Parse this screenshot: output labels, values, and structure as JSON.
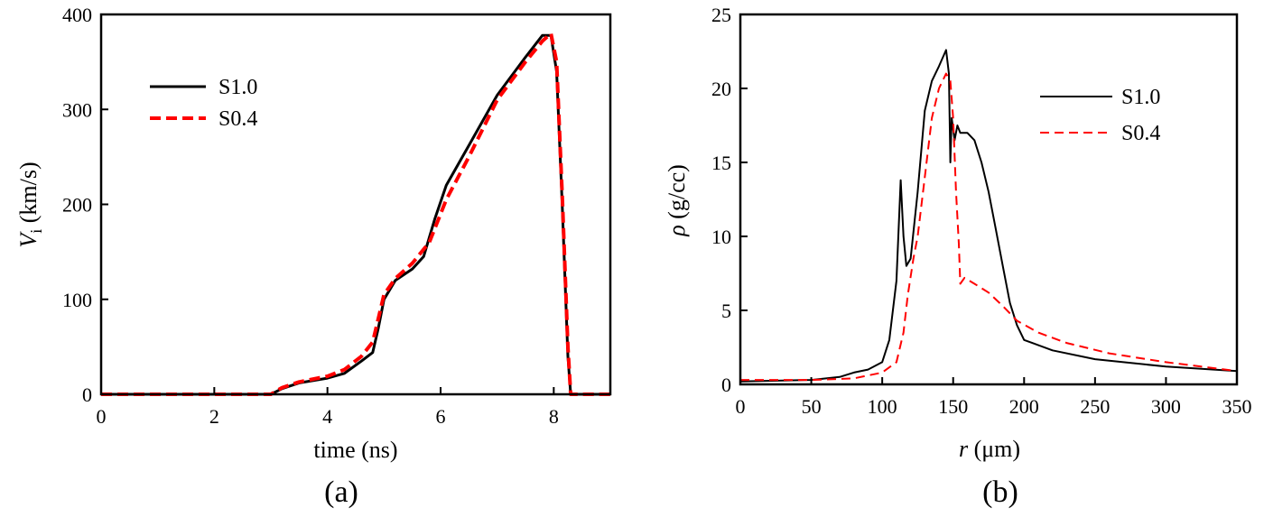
{
  "chart_data": [
    {
      "type": "line",
      "panel_label": "(a)",
      "xlabel": "time (ns)",
      "ylabel_symbol": "V",
      "ylabel_sub": "i",
      "ylabel_unit": " (km/s)",
      "xlim": [
        0,
        9
      ],
      "ylim": [
        0,
        400
      ],
      "xticks": [
        0,
        2,
        4,
        6,
        8
      ],
      "yticks": [
        0,
        100,
        200,
        300,
        400
      ],
      "legend_position": "top-left",
      "series": [
        {
          "name": "S1.0",
          "color": "#000000",
          "style": "solid",
          "points": [
            [
              0,
              0
            ],
            [
              3.0,
              0
            ],
            [
              3.2,
              6
            ],
            [
              3.5,
              12
            ],
            [
              4.0,
              17
            ],
            [
              4.3,
              22
            ],
            [
              4.6,
              35
            ],
            [
              4.8,
              44
            ],
            [
              4.9,
              70
            ],
            [
              5.0,
              100
            ],
            [
              5.2,
              120
            ],
            [
              5.5,
              132
            ],
            [
              5.7,
              145
            ],
            [
              5.9,
              185
            ],
            [
              6.1,
              220
            ],
            [
              6.5,
              262
            ],
            [
              7.0,
              315
            ],
            [
              7.5,
              355
            ],
            [
              7.8,
              378
            ],
            [
              7.95,
              378
            ],
            [
              8.05,
              340
            ],
            [
              8.15,
              200
            ],
            [
              8.25,
              40
            ],
            [
              8.3,
              0
            ],
            [
              9.0,
              0
            ]
          ]
        },
        {
          "name": "S0.4",
          "color": "#ff0000",
          "style": "dashed",
          "points": [
            [
              0,
              0
            ],
            [
              3.0,
              0
            ],
            [
              3.2,
              7
            ],
            [
              3.5,
              13
            ],
            [
              4.0,
              19
            ],
            [
              4.3,
              26
            ],
            [
              4.6,
              40
            ],
            [
              4.8,
              55
            ],
            [
              4.9,
              80
            ],
            [
              5.0,
              105
            ],
            [
              5.2,
              122
            ],
            [
              5.5,
              138
            ],
            [
              5.8,
              160
            ],
            [
              6.1,
              205
            ],
            [
              6.5,
              250
            ],
            [
              7.0,
              310
            ],
            [
              7.5,
              350
            ],
            [
              7.8,
              372
            ],
            [
              7.95,
              380
            ],
            [
              8.05,
              350
            ],
            [
              8.15,
              210
            ],
            [
              8.25,
              50
            ],
            [
              8.3,
              0
            ],
            [
              9.0,
              0
            ]
          ]
        }
      ]
    },
    {
      "type": "line",
      "panel_label": "(b)",
      "xlabel_symbol": "r",
      "xlabel_unit": " (μm)",
      "ylabel_symbol": "ρ",
      "ylabel_unit": " (g/cc)",
      "xlim": [
        0,
        350
      ],
      "ylim": [
        0,
        25
      ],
      "xticks": [
        0,
        50,
        100,
        150,
        200,
        250,
        300,
        350
      ],
      "yticks": [
        0,
        5,
        10,
        15,
        20,
        25
      ],
      "legend_position": "top-right",
      "series": [
        {
          "name": "S1.0",
          "color": "#000000",
          "style": "solid",
          "points": [
            [
              0,
              0.2
            ],
            [
              50,
              0.3
            ],
            [
              70,
              0.5
            ],
            [
              80,
              0.8
            ],
            [
              90,
              1.0
            ],
            [
              100,
              1.5
            ],
            [
              105,
              3.0
            ],
            [
              110,
              7.0
            ],
            [
              113,
              13.8
            ],
            [
              115,
              10.0
            ],
            [
              117,
              8.0
            ],
            [
              120,
              8.5
            ],
            [
              125,
              13.0
            ],
            [
              130,
              18.5
            ],
            [
              135,
              20.5
            ],
            [
              140,
              21.5
            ],
            [
              145,
              22.6
            ],
            [
              147,
              21.0
            ],
            [
              148,
              15.0
            ],
            [
              149,
              18.0
            ],
            [
              151,
              16.5
            ],
            [
              153,
              17.5
            ],
            [
              155,
              17.0
            ],
            [
              160,
              17.0
            ],
            [
              165,
              16.5
            ],
            [
              170,
              15.0
            ],
            [
              175,
              13.0
            ],
            [
              180,
              10.5
            ],
            [
              185,
              8.0
            ],
            [
              190,
              5.5
            ],
            [
              195,
              4.0
            ],
            [
              200,
              3.0
            ],
            [
              220,
              2.3
            ],
            [
              250,
              1.7
            ],
            [
              300,
              1.2
            ],
            [
              350,
              0.9
            ]
          ]
        },
        {
          "name": "S0.4",
          "color": "#ff0000",
          "style": "dashed",
          "points": [
            [
              0,
              0.3
            ],
            [
              50,
              0.3
            ],
            [
              80,
              0.4
            ],
            [
              100,
              0.8
            ],
            [
              110,
              1.5
            ],
            [
              115,
              3.5
            ],
            [
              118,
              6.0
            ],
            [
              122,
              8.5
            ],
            [
              125,
              10.0
            ],
            [
              130,
              14.0
            ],
            [
              135,
              18.0
            ],
            [
              140,
              20.0
            ],
            [
              145,
              21.0
            ],
            [
              148,
              20.5
            ],
            [
              150,
              18.0
            ],
            [
              152,
              13.0
            ],
            [
              154,
              9.5
            ],
            [
              155,
              6.8
            ],
            [
              158,
              7.2
            ],
            [
              165,
              6.8
            ],
            [
              175,
              6.2
            ],
            [
              185,
              5.3
            ],
            [
              195,
              4.3
            ],
            [
              210,
              3.5
            ],
            [
              230,
              2.8
            ],
            [
              260,
              2.1
            ],
            [
              300,
              1.5
            ],
            [
              350,
              0.9
            ]
          ]
        }
      ]
    }
  ]
}
